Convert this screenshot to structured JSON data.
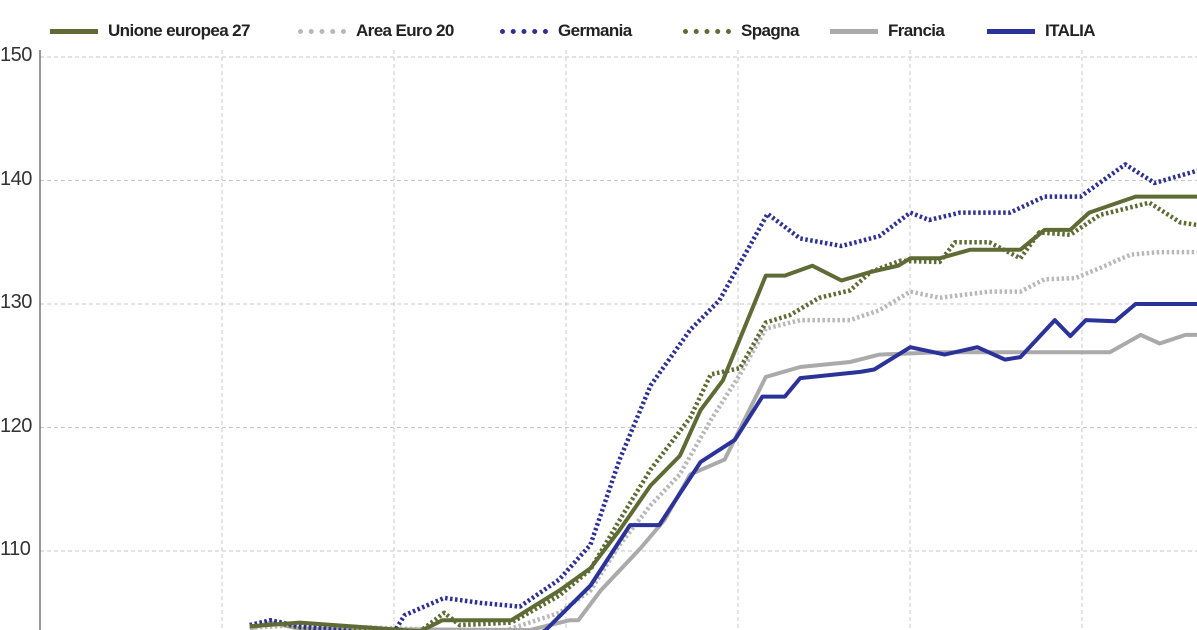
{
  "chart_data": {
    "type": "line",
    "title": "",
    "xlabel": "",
    "ylabel": "",
    "ylim": [
      100,
      150
    ],
    "xlim": [
      0,
      67.3
    ],
    "yticks": [
      "150",
      "140",
      "130",
      "120",
      "110"
    ],
    "grid": true,
    "legend_position": "top",
    "series": [
      {
        "name": "Unione europea 27",
        "color": "#5f6b35",
        "style": "solid",
        "points": [
          [
            12.2,
            103.9
          ],
          [
            15.1,
            104.2
          ],
          [
            22.1,
            103.5
          ],
          [
            23.4,
            104.4
          ],
          [
            27.4,
            104.4
          ],
          [
            30.2,
            106.8
          ],
          [
            32,
            108.6
          ],
          [
            33.7,
            111.7
          ],
          [
            35.5,
            115.3
          ],
          [
            37.2,
            117.7
          ],
          [
            38.4,
            121.4
          ],
          [
            39.7,
            123.8
          ],
          [
            42.2,
            132.3
          ],
          [
            43.3,
            132.3
          ],
          [
            44.9,
            133.1
          ],
          [
            46.6,
            131.9
          ],
          [
            48.3,
            132.6
          ],
          [
            49.9,
            133.1
          ],
          [
            50.6,
            133.7
          ],
          [
            52.3,
            133.7
          ],
          [
            54.1,
            134.4
          ],
          [
            57,
            134.4
          ],
          [
            58.4,
            136
          ],
          [
            59.9,
            136
          ],
          [
            61,
            137.4
          ],
          [
            63.7,
            138.7
          ],
          [
            67.3,
            138.7
          ]
        ]
      },
      {
        "name": "Area Euro 20",
        "color": "#b8b8b8",
        "style": "dotted",
        "points": [
          [
            12.2,
            103.8
          ],
          [
            15.1,
            104.0
          ],
          [
            23.5,
            103.6
          ],
          [
            26.7,
            103.4
          ],
          [
            30.2,
            105
          ],
          [
            32,
            106.8
          ],
          [
            33.7,
            110.5
          ],
          [
            35.5,
            113.7
          ],
          [
            37.2,
            116.2
          ],
          [
            39,
            120.6
          ],
          [
            40.7,
            124.3
          ],
          [
            42.2,
            128
          ],
          [
            44.2,
            128.7
          ],
          [
            47.1,
            128.7
          ],
          [
            48.8,
            129.5
          ],
          [
            50.6,
            131
          ],
          [
            52.3,
            130.5
          ],
          [
            55.2,
            131
          ],
          [
            57,
            131
          ],
          [
            58.4,
            132
          ],
          [
            60.2,
            132.1
          ],
          [
            61.6,
            132.9
          ],
          [
            63.4,
            134
          ],
          [
            65.1,
            134.2
          ],
          [
            67.3,
            134.2
          ]
        ]
      },
      {
        "name": "Germania",
        "color": "#2e3192",
        "style": "dotted",
        "points": [
          [
            12.2,
            104
          ],
          [
            13.4,
            104.4
          ],
          [
            15.1,
            103.9
          ],
          [
            18,
            103.5
          ],
          [
            20.3,
            102.8
          ],
          [
            21.2,
            104.8
          ],
          [
            23.5,
            106.2
          ],
          [
            25.6,
            105.8
          ],
          [
            27.9,
            105.5
          ],
          [
            30.2,
            107.7
          ],
          [
            32,
            110.5
          ],
          [
            33.7,
            117.4
          ],
          [
            35.5,
            123.4
          ],
          [
            37.8,
            127.9
          ],
          [
            39.5,
            130.3
          ],
          [
            42.3,
            137.3
          ],
          [
            44.2,
            135.3
          ],
          [
            46.6,
            134.7
          ],
          [
            48.8,
            135.5
          ],
          [
            50.6,
            137.4
          ],
          [
            51.7,
            136.8
          ],
          [
            53.5,
            137.4
          ],
          [
            56.4,
            137.4
          ],
          [
            58.4,
            138.7
          ],
          [
            60.5,
            138.7
          ],
          [
            63.1,
            141.3
          ],
          [
            64.8,
            139.8
          ],
          [
            67.3,
            140.8
          ]
        ]
      },
      {
        "name": "Spagna",
        "color": "#5f6b35",
        "style": "dotted",
        "points": [
          [
            12.2,
            104
          ],
          [
            13.4,
            104.3
          ],
          [
            15.1,
            103.8
          ],
          [
            22.1,
            103.5
          ],
          [
            23.5,
            105
          ],
          [
            24.4,
            104
          ],
          [
            27.4,
            104.2
          ],
          [
            30.2,
            106.4
          ],
          [
            32,
            108.5
          ],
          [
            33.7,
            112.5
          ],
          [
            35.5,
            116.6
          ],
          [
            36.6,
            118.6
          ],
          [
            37.8,
            120.8
          ],
          [
            39,
            124.3
          ],
          [
            40.7,
            124.8
          ],
          [
            42.2,
            128.5
          ],
          [
            43.6,
            129.1
          ],
          [
            45.3,
            130.5
          ],
          [
            47.1,
            131.1
          ],
          [
            48.3,
            132.6
          ],
          [
            50,
            133.5
          ],
          [
            52.3,
            133.4
          ],
          [
            53.2,
            135
          ],
          [
            55.2,
            135
          ],
          [
            57,
            133.7
          ],
          [
            58.1,
            135.8
          ],
          [
            59.9,
            135.6
          ],
          [
            61.6,
            137.2
          ],
          [
            64.5,
            138.2
          ],
          [
            66.3,
            136.6
          ],
          [
            67.3,
            136.4
          ]
        ]
      },
      {
        "name": "Francia",
        "color": "#aaaaaa",
        "style": "solid",
        "points": [
          [
            12.2,
            103.7
          ],
          [
            13.4,
            104.2
          ],
          [
            15.1,
            103.7
          ],
          [
            28.5,
            103.6
          ],
          [
            30.8,
            104.4
          ],
          [
            31.3,
            104.4
          ],
          [
            32.6,
            106.8
          ],
          [
            34.9,
            110.2
          ],
          [
            36.3,
            112.5
          ],
          [
            37.8,
            116.2
          ],
          [
            39.8,
            117.4
          ],
          [
            42.2,
            124.1
          ],
          [
            44.2,
            124.9
          ],
          [
            47.1,
            125.3
          ],
          [
            48.8,
            125.9
          ],
          [
            52.3,
            126.1
          ],
          [
            62.2,
            126.1
          ],
          [
            64,
            127.5
          ],
          [
            65.1,
            126.8
          ],
          [
            66.6,
            127.5
          ],
          [
            67.3,
            127.5
          ]
        ]
      },
      {
        "name": "ITALIA",
        "color": "#2b339a",
        "style": "solid",
        "points": [
          [
            28.5,
            102.8
          ],
          [
            29.4,
            103.6
          ],
          [
            32,
            107.2
          ],
          [
            34.3,
            112.1
          ],
          [
            36,
            112.1
          ],
          [
            38.4,
            117.2
          ],
          [
            40.4,
            119
          ],
          [
            42,
            122.5
          ],
          [
            43.3,
            122.5
          ],
          [
            44.2,
            124
          ],
          [
            47.7,
            124.5
          ],
          [
            48.5,
            124.7
          ],
          [
            50.6,
            126.5
          ],
          [
            52.6,
            125.9
          ],
          [
            54.5,
            126.5
          ],
          [
            56.1,
            125.5
          ],
          [
            57,
            125.7
          ],
          [
            59,
            128.7
          ],
          [
            59.9,
            127.4
          ],
          [
            60.8,
            128.7
          ],
          [
            62.5,
            128.6
          ],
          [
            63.7,
            130
          ],
          [
            67.3,
            130
          ]
        ]
      }
    ]
  }
}
